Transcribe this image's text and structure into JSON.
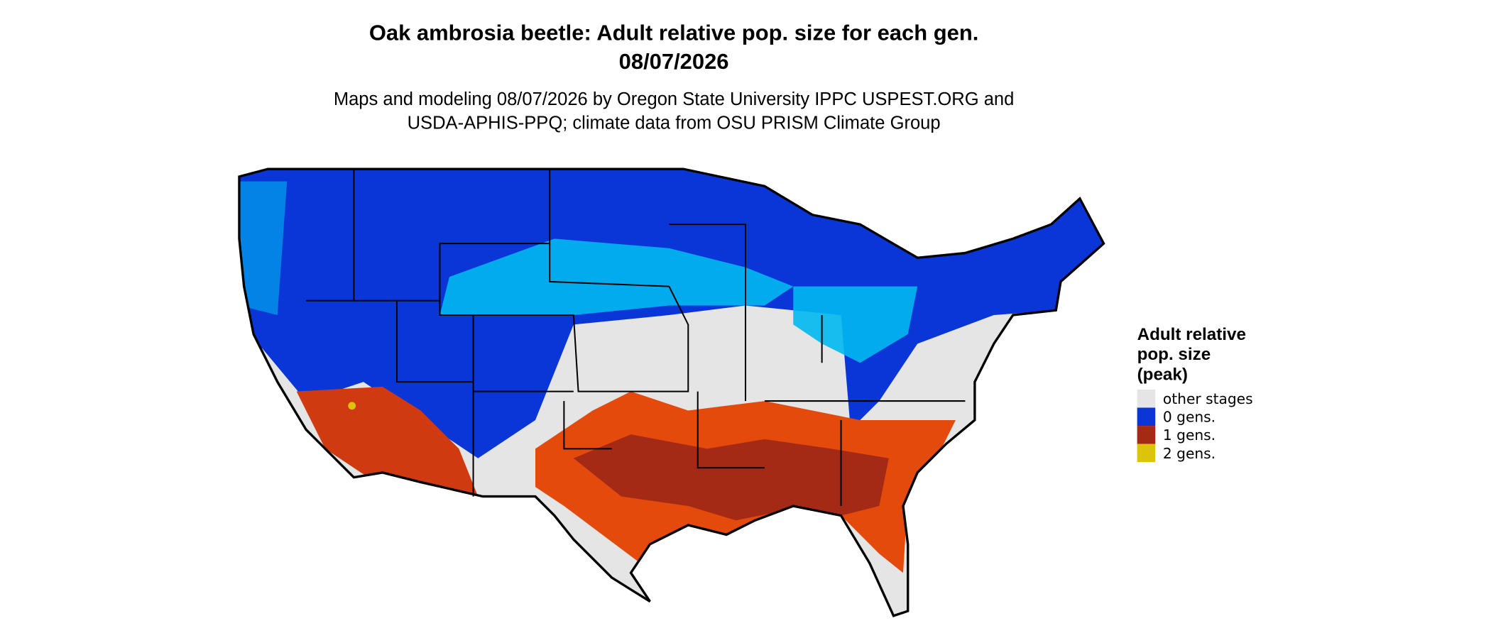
{
  "title": [
    "Oak ambrosia beetle: Adult relative pop. size for each gen.",
    "08/07/2026"
  ],
  "subtitle": [
    "Maps and modeling 08/07/2026 by Oregon State University IPPC USPEST.ORG and",
    "USDA-APHIS-PPQ; climate data from OSU PRISM Climate Group"
  ],
  "legend": {
    "title": [
      "Adult relative",
      "pop. size",
      "(peak)"
    ],
    "items": [
      {
        "label": "other stages",
        "color": "#e5e5e5"
      },
      {
        "label": "0 gens.",
        "color": "#0a36d8"
      },
      {
        "label": "1 gens.",
        "color": "#a52a16"
      },
      {
        "label": "2 gens.",
        "color": "#dcc40a"
      }
    ]
  }
}
